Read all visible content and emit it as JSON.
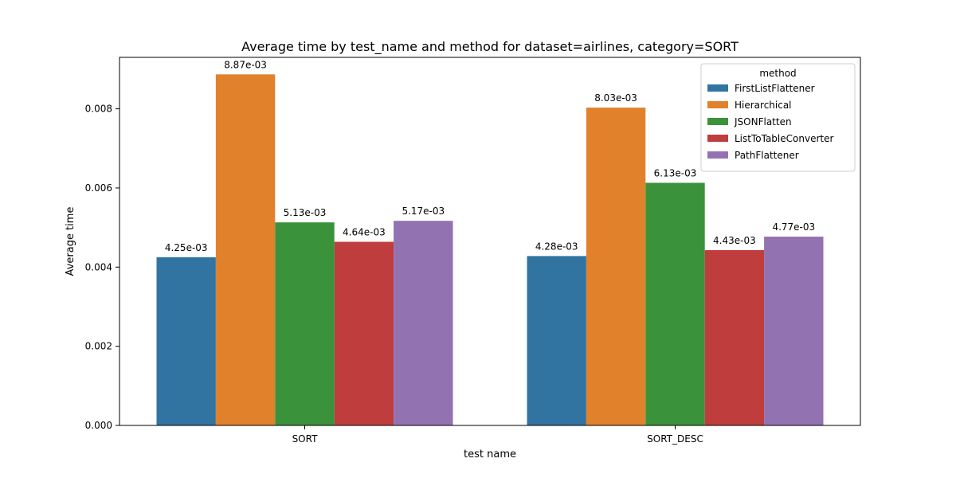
{
  "chart_data": {
    "type": "bar",
    "title": "Average time by test_name and method for dataset=airlines, category=SORT",
    "xlabel": "test name",
    "ylabel": "Average time",
    "categories": [
      "SORT",
      "SORT_DESC"
    ],
    "ylim": [
      0,
      0.0093
    ],
    "yticks": [
      0.0,
      0.002,
      0.004,
      0.006,
      0.008
    ],
    "ytick_labels": [
      "0.000",
      "0.002",
      "0.004",
      "0.006",
      "0.008"
    ],
    "grid": false,
    "legend": {
      "title": "method",
      "placement": "top-right"
    },
    "series": [
      {
        "name": "FirstListFlattener",
        "color": "#3274a1",
        "values": [
          0.00425,
          0.00428
        ],
        "labels": [
          "4.25e-03",
          "4.28e-03"
        ]
      },
      {
        "name": "Hierarchical",
        "color": "#e1812c",
        "values": [
          0.00887,
          0.00803
        ],
        "labels": [
          "8.87e-03",
          "8.03e-03"
        ]
      },
      {
        "name": "JSONFlatten",
        "color": "#3a923a",
        "values": [
          0.00513,
          0.00613
        ],
        "labels": [
          "5.13e-03",
          "6.13e-03"
        ]
      },
      {
        "name": "ListToTableConverter",
        "color": "#c03d3e",
        "values": [
          0.00464,
          0.00443
        ],
        "labels": [
          "4.64e-03",
          "4.43e-03"
        ]
      },
      {
        "name": "PathFlattener",
        "color": "#9372b2",
        "values": [
          0.00517,
          0.00477
        ],
        "labels": [
          "5.17e-03",
          "4.77e-03"
        ]
      }
    ]
  }
}
